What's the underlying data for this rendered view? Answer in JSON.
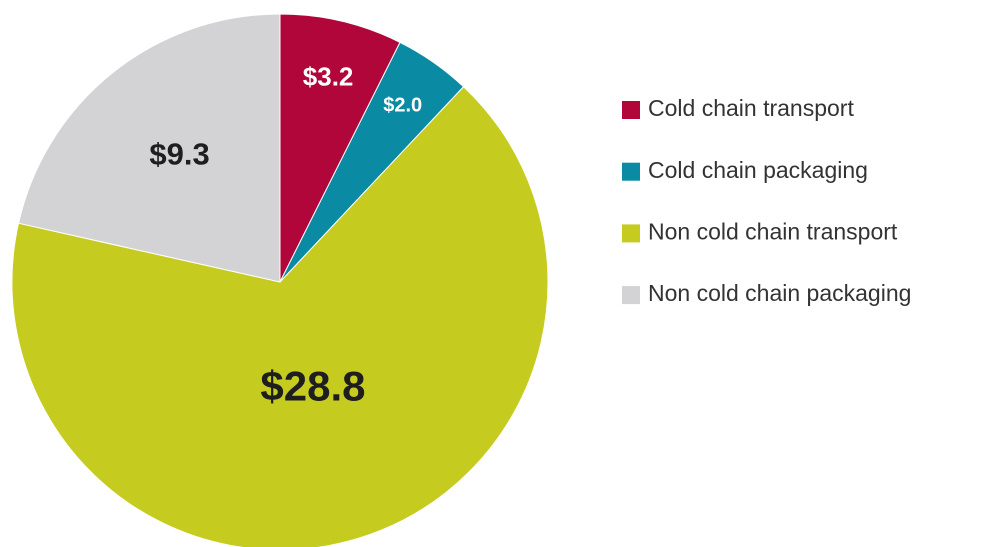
{
  "chart_data": {
    "type": "pie",
    "categories": [
      "Cold chain transport",
      "Cold chain packaging",
      "Non cold chain transport",
      "Non cold chain packaging"
    ],
    "values": [
      3.2,
      2.0,
      28.8,
      9.3
    ],
    "value_labels": [
      "$3.2",
      "$2.0",
      "$28.8",
      "$9.3"
    ],
    "colors": [
      "#b0063a",
      "#0a8aa3",
      "#c5cc1f",
      "#d3d3d5"
    ],
    "legend": "right"
  }
}
